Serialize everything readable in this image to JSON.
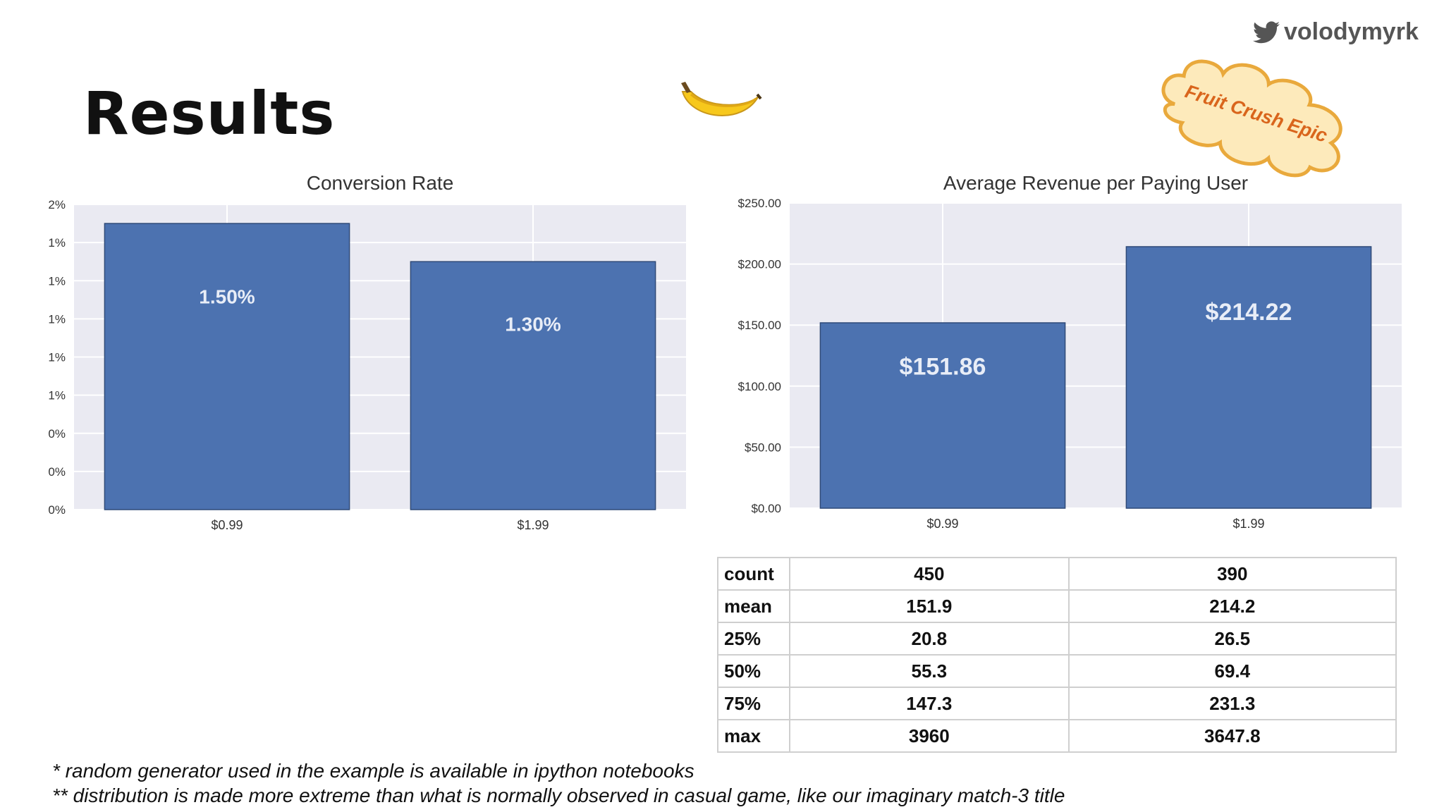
{
  "page": {
    "title": "Results",
    "handle": "volodymyrk",
    "badge_text": "Fruit Crush Epic"
  },
  "chart_data": [
    {
      "type": "bar",
      "title": "Conversion Rate",
      "categories": [
        "$0.99",
        "$1.99"
      ],
      "values": [
        1.5,
        1.3
      ],
      "value_labels": [
        "1.50%",
        "1.30%"
      ],
      "yticks": [
        "0%",
        "0%",
        "0%",
        "1%",
        "1%",
        "1%",
        "1%",
        "1%",
        "2%"
      ],
      "ylim": [
        0,
        1.6
      ],
      "xlabel": "",
      "ylabel": "",
      "grid": true,
      "bar_color": "#4c72b0"
    },
    {
      "type": "bar",
      "title": "Average Revenue per Paying User",
      "categories": [
        "$0.99",
        "$1.99"
      ],
      "values": [
        151.86,
        214.22
      ],
      "value_labels": [
        "$151.86",
        "$214.22"
      ],
      "yticks": [
        "$0.00",
        "$50.00",
        "$100.00",
        "$150.00",
        "$200.00",
        "$250.00"
      ],
      "ylim": [
        0,
        250
      ],
      "xlabel": "",
      "ylabel": "",
      "grid": true,
      "bar_color": "#4c72b0"
    }
  ],
  "stats_table": {
    "rows": [
      {
        "label": "count",
        "v1": "450",
        "v2": "390"
      },
      {
        "label": "mean",
        "v1": "151.9",
        "v2": "214.2"
      },
      {
        "label": "25%",
        "v1": "20.8",
        "v2": "26.5"
      },
      {
        "label": "50%",
        "v1": "55.3",
        "v2": "69.4"
      },
      {
        "label": "75%",
        "v1": "147.3",
        "v2": "231.3"
      },
      {
        "label": "max",
        "v1": "3960",
        "v2": "3647.8"
      }
    ]
  },
  "footnotes": [
    "* random generator used in the example is available in ipython notebooks",
    "** distribution is made more extreme than what is normally observed in casual game, like our imaginary match-3 title"
  ],
  "colors": {
    "plot_background": "#eaeaf2",
    "bar": "#4c72b0",
    "badge_fill": "#fdeabb",
    "badge_stroke": "#e9a93c",
    "badge_text": "#d9651c"
  }
}
